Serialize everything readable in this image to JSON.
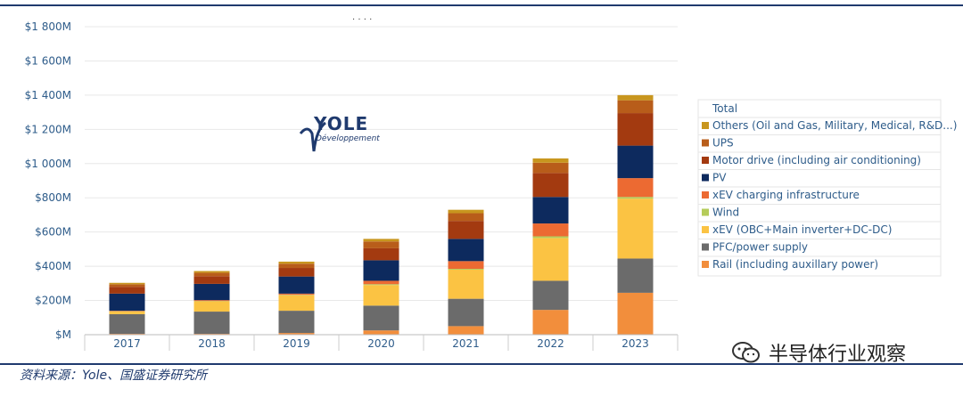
{
  "header": {
    "dots": ". . . ."
  },
  "source": {
    "text": "资料来源：Yole、国盛证券研究所"
  },
  "watermark": {
    "text": "半导体行业观察",
    "icon": "wechat-icon"
  },
  "logo": {
    "name": "YOLE",
    "subtitle": "Développement"
  },
  "chart_data": {
    "type": "bar",
    "stacked": true,
    "categories": [
      "2017",
      "2018",
      "2019",
      "2020",
      "2021",
      "2022",
      "2023"
    ],
    "ylim": [
      0,
      1800
    ],
    "yticks": [
      0,
      200,
      400,
      600,
      800,
      1000,
      1200,
      1400,
      1600,
      1800
    ],
    "ytick_labels": [
      "$M",
      "$200M",
      "$400M",
      "$600M",
      "$800M",
      "$1 000M",
      "$1 200M",
      "$1 400M",
      "$1 600M",
      "$1 800M"
    ],
    "legend_position": "right",
    "legend_title": "Total",
    "series": [
      {
        "name": "Rail (including auxillary power)",
        "color": "#f28e3c",
        "values": [
          5,
          5,
          10,
          25,
          50,
          145,
          245
        ]
      },
      {
        "name": "PFC/power supply",
        "color": "#6b6b6b",
        "values": [
          115,
          130,
          130,
          145,
          160,
          170,
          200
        ]
      },
      {
        "name": "xEV (OBC+Main inverter+DC-DC)",
        "color": "#fbc343",
        "values": [
          15,
          60,
          90,
          120,
          170,
          250,
          350
        ]
      },
      {
        "name": "Wind",
        "color": "#b5cc5a",
        "values": [
          2,
          2,
          3,
          5,
          5,
          10,
          10
        ]
      },
      {
        "name": "xEV charging infrastructure",
        "color": "#ec6a32",
        "values": [
          3,
          5,
          7,
          20,
          45,
          75,
          110
        ]
      },
      {
        "name": "PV",
        "color": "#0d2a5e",
        "values": [
          100,
          95,
          100,
          120,
          130,
          155,
          190
        ]
      },
      {
        "name": "Motor drive (including air conditioning)",
        "color": "#a33a10",
        "values": [
          40,
          45,
          50,
          70,
          105,
          140,
          190
        ]
      },
      {
        "name": "UPS",
        "color": "#b85d1a",
        "values": [
          15,
          20,
          25,
          40,
          45,
          60,
          75
        ]
      },
      {
        "name": "Others (Oil and Gas, Military, Medical, R&D...)",
        "color": "#c8961e",
        "values": [
          8,
          10,
          12,
          15,
          20,
          25,
          30
        ]
      }
    ]
  }
}
